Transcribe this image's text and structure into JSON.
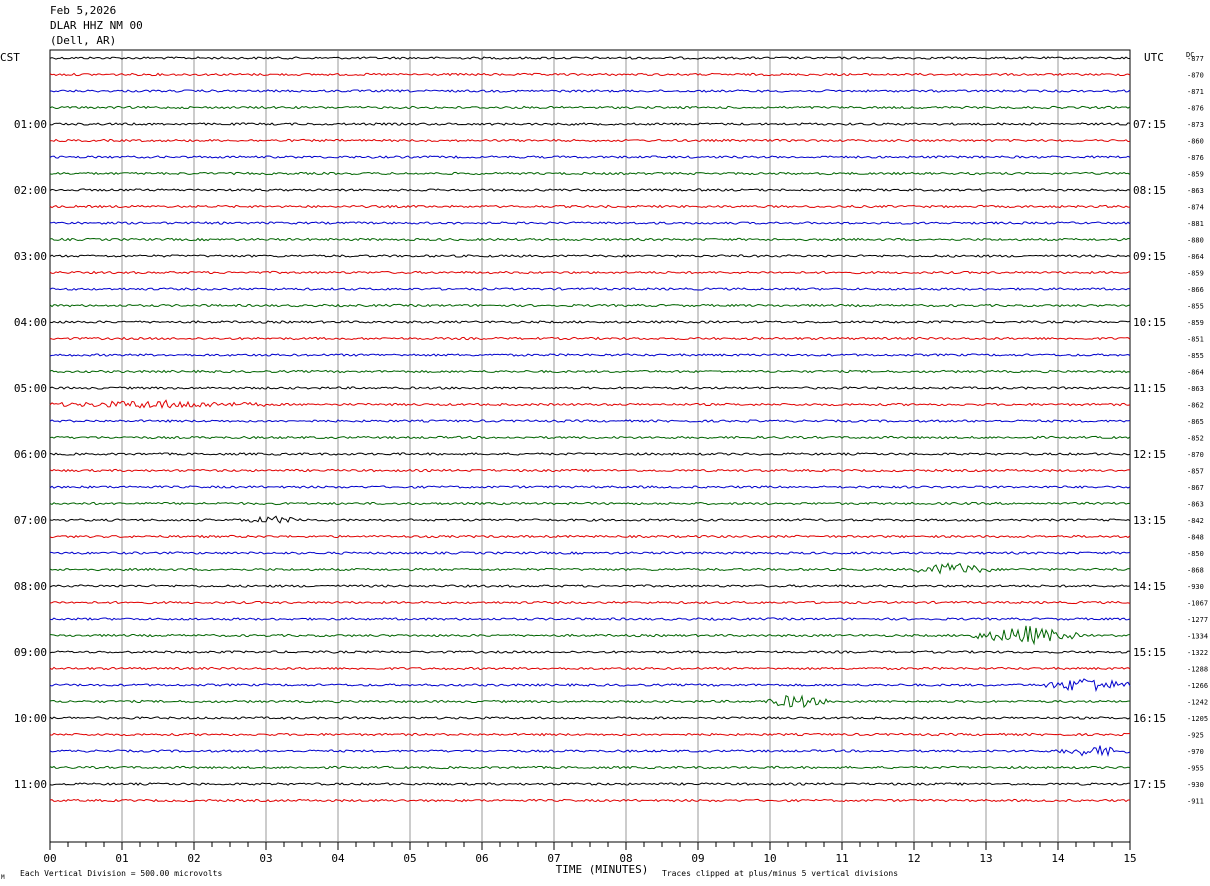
{
  "header": {
    "date": "Feb 5,2026",
    "station": "DLAR HHZ NM 00",
    "location": "(Dell, AR)"
  },
  "left_timezone": "CST",
  "right_timezone": "UTC",
  "dc_label": "DC",
  "footer": {
    "scale_note": "Each Vertical Division =  500.00 microvolts",
    "clip_note": "Traces clipped at plus/minus 5 vertical divisions",
    "corner_mark": "M"
  },
  "colors": {
    "black": "#000000",
    "red": "#e00000",
    "blue": "#0000cc",
    "green": "#006400",
    "grid": "#808080"
  },
  "chart_data": {
    "type": "line",
    "title": "DLAR HHZ NM 00",
    "xlabel": "TIME (MINUTES)",
    "xlim": [
      0,
      15
    ],
    "x_ticks": [
      "00",
      "01",
      "02",
      "03",
      "04",
      "05",
      "06",
      "07",
      "08",
      "09",
      "10",
      "11",
      "12",
      "13",
      "14",
      "15"
    ],
    "traces_per_hour": 4,
    "minutes_per_trace": 15,
    "trace_color_cycle": [
      "black",
      "red",
      "blue",
      "green"
    ],
    "hour_labels_left": [
      "01:00",
      "02:00",
      "03:00",
      "04:00",
      "05:00",
      "06:00",
      "07:00",
      "08:00",
      "09:00",
      "10:00",
      "11:00"
    ],
    "hour_labels_right": [
      "07:15",
      "08:15",
      "09:15",
      "10:15",
      "11:15",
      "12:15",
      "13:15",
      "14:15",
      "15:15",
      "16:15",
      "17:15"
    ],
    "dc_offsets": [
      -877,
      -870,
      -871,
      -876,
      -873,
      -860,
      -876,
      -859,
      -863,
      -874,
      -881,
      -880,
      -864,
      -859,
      -866,
      -855,
      -859,
      -851,
      -855,
      -864,
      -863,
      -862,
      -865,
      -852,
      -870,
      -857,
      -867,
      -863,
      -842,
      -848,
      -850,
      -868,
      -930,
      -1067,
      -1277,
      -1334,
      -1322,
      -1288,
      -1266,
      -1242,
      -1205,
      -925,
      -970,
      -955,
      -930,
      -911
    ],
    "events": [
      {
        "trace": 21,
        "start_min": 0.0,
        "end_min": 3.0,
        "amplitude": 1.6
      },
      {
        "trace": 28,
        "start_min": 2.6,
        "end_min": 3.6,
        "amplitude": 1.4
      },
      {
        "trace": 31,
        "start_min": 12.0,
        "end_min": 13.1,
        "amplitude": 3.0
      },
      {
        "trace": 35,
        "start_min": 12.8,
        "end_min": 14.3,
        "amplitude": 4.2
      },
      {
        "trace": 38,
        "start_min": 13.8,
        "end_min": 15.0,
        "amplitude": 3.6
      },
      {
        "trace": 39,
        "start_min": 9.9,
        "end_min": 10.8,
        "amplitude": 3.0
      },
      {
        "trace": 42,
        "start_min": 14.0,
        "end_min": 15.0,
        "amplitude": 2.4
      }
    ]
  }
}
